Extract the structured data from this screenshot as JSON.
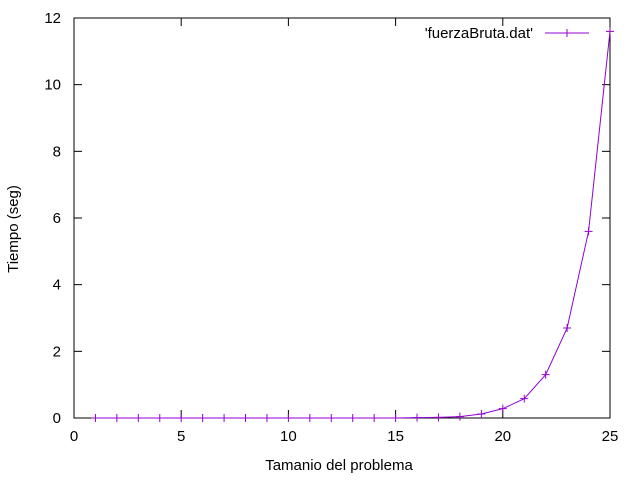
{
  "chart_data": {
    "type": "line",
    "title": "",
    "xlabel": "Tamanio del problema",
    "ylabel": "Tiempo (seg)",
    "xlim": [
      0,
      25
    ],
    "ylim": [
      0,
      12
    ],
    "xticks": [
      0,
      5,
      10,
      15,
      20,
      25
    ],
    "yticks": [
      0,
      2,
      4,
      6,
      8,
      10,
      12
    ],
    "grid": false,
    "legend_position": "top-right",
    "series": [
      {
        "name": "'fuerzaBruta.dat'",
        "color": "#9400d3",
        "marker": "plus",
        "x": [
          1,
          2,
          3,
          4,
          5,
          6,
          7,
          8,
          9,
          10,
          11,
          12,
          13,
          14,
          15,
          16,
          17,
          18,
          19,
          20,
          21,
          22,
          23,
          24,
          25
        ],
        "y": [
          0,
          0,
          0,
          0,
          0,
          0,
          0,
          0,
          0,
          0,
          0,
          0,
          0,
          0,
          0,
          0.01,
          0.02,
          0.04,
          0.12,
          0.28,
          0.58,
          1.3,
          2.7,
          5.6,
          11.6
        ]
      }
    ]
  }
}
